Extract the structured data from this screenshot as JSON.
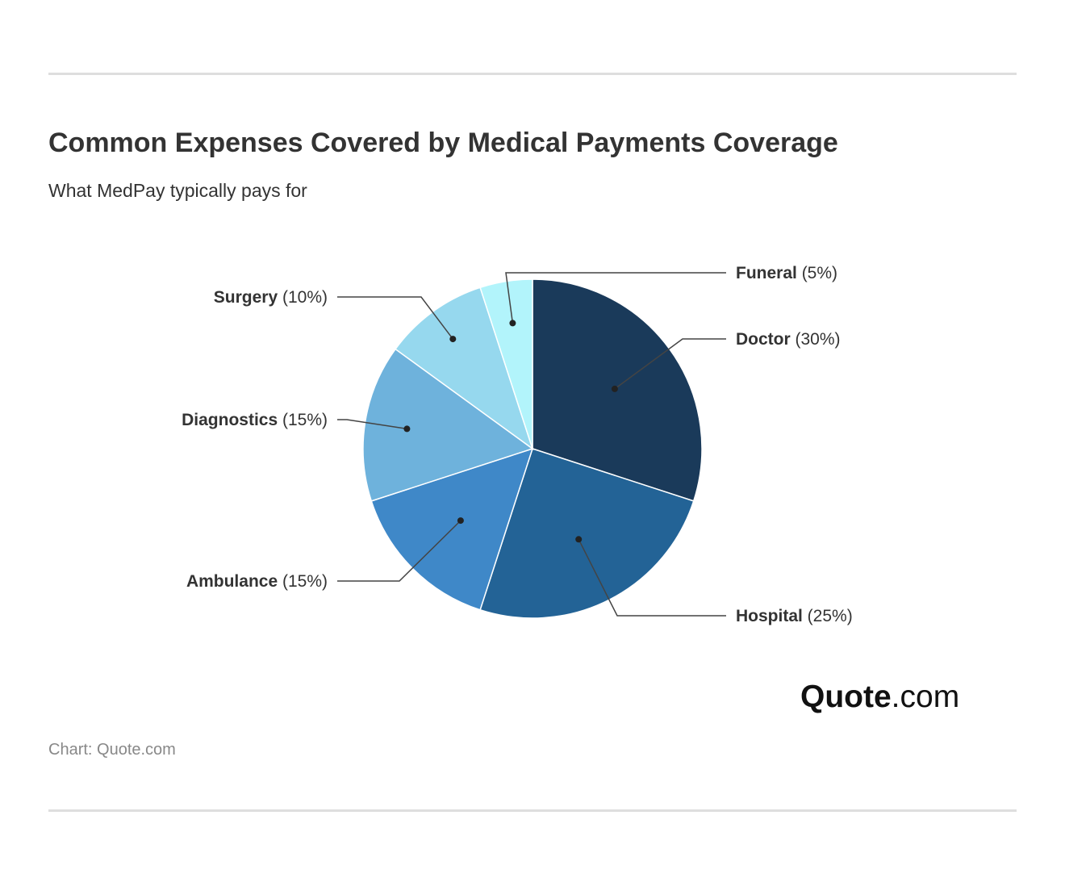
{
  "header": {
    "title": "Common Expenses Covered by Medical Payments Coverage",
    "subtitle": "What MedPay typically pays for"
  },
  "chart_data": {
    "type": "pie",
    "title": "Common Expenses Covered by Medical Payments Coverage",
    "subtitle": "What MedPay typically pays for",
    "slices": [
      {
        "label": "Doctor",
        "value": 30,
        "display": "(30%)",
        "color": "#1a3a5a"
      },
      {
        "label": "Hospital",
        "value": 25,
        "display": "(25%)",
        "color": "#236396"
      },
      {
        "label": "Ambulance",
        "value": 15,
        "display": "(15%)",
        "color": "#3f88c8"
      },
      {
        "label": "Diagnostics",
        "value": 15,
        "display": "(15%)",
        "color": "#6eb2dc"
      },
      {
        "label": "Surgery",
        "value": 10,
        "display": "(10%)",
        "color": "#96d8ee"
      },
      {
        "label": "Funeral",
        "value": 5,
        "display": "(5%)",
        "color": "#b2f4fb"
      }
    ]
  },
  "brand": {
    "logo_main": "Quote",
    "logo_suffix": ".com"
  },
  "footer": {
    "source": "Chart: Quote.com"
  }
}
